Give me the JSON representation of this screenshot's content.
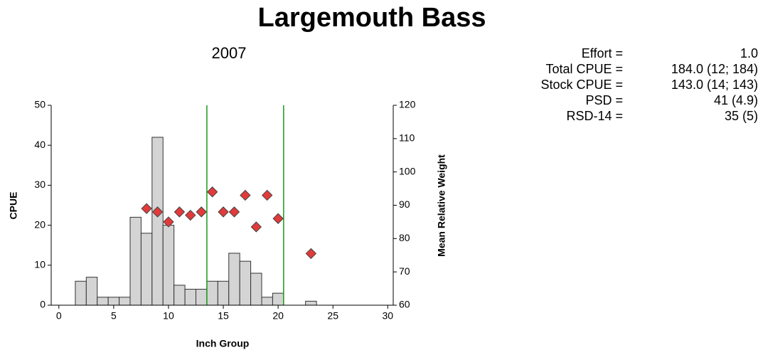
{
  "chart_data": {
    "type": "histogram",
    "title": "Largemouth Bass",
    "subtitle": "2007",
    "x_label": "Inch Group",
    "y_label": "CPUE",
    "y2_label": "Mean Relative Weight",
    "bins": [
      1.5,
      2.5,
      3.5,
      4.5,
      5.5,
      6.5,
      7.5,
      8.5,
      9.5,
      10.5,
      11.5,
      12.5,
      13.5,
      14.5,
      15.5,
      16.5,
      17.5,
      18.5,
      19.5,
      20.5,
      21.5,
      22.5,
      23.5
    ],
    "values": [
      6,
      7,
      2,
      2,
      2,
      22,
      18,
      42,
      20,
      5,
      4,
      4,
      6,
      6,
      13,
      11,
      8,
      2,
      3,
      0,
      0,
      1
    ],
    "color": "#d4d4d4",
    "overlay": {
      "type": "scatter",
      "axis": "y2",
      "color": "#e23a3a",
      "x": [
        8,
        9,
        10,
        11,
        12,
        13,
        14,
        15,
        16,
        17,
        18,
        19,
        20,
        23
      ],
      "values": [
        89,
        88,
        85,
        88,
        87,
        88,
        94,
        88,
        88,
        93,
        83.5,
        93,
        86,
        75.5
      ]
    },
    "vlines": [
      13.5,
      20.5
    ],
    "vline_color": "#1a9a1a",
    "xlim": [
      -0.7,
      30.5
    ],
    "xticks": [
      0,
      5,
      10,
      15,
      20,
      25,
      30
    ],
    "ylim": [
      0,
      50
    ],
    "yticks": [
      0,
      10,
      20,
      30,
      40,
      50
    ],
    "y2lim": [
      60,
      120
    ],
    "y2ticks": [
      60,
      70,
      80,
      90,
      100,
      110,
      120
    ]
  },
  "stats": [
    {
      "label": "Effort =",
      "value": "1.0"
    },
    {
      "label": "Total CPUE =",
      "value": "184.0 (12; 184)"
    },
    {
      "label": "Stock CPUE =",
      "value": "143.0 (14; 143)"
    },
    {
      "label": "PSD =",
      "value": "41 (4.9)"
    },
    {
      "label": "RSD-14 =",
      "value": "35 (5)"
    }
  ]
}
